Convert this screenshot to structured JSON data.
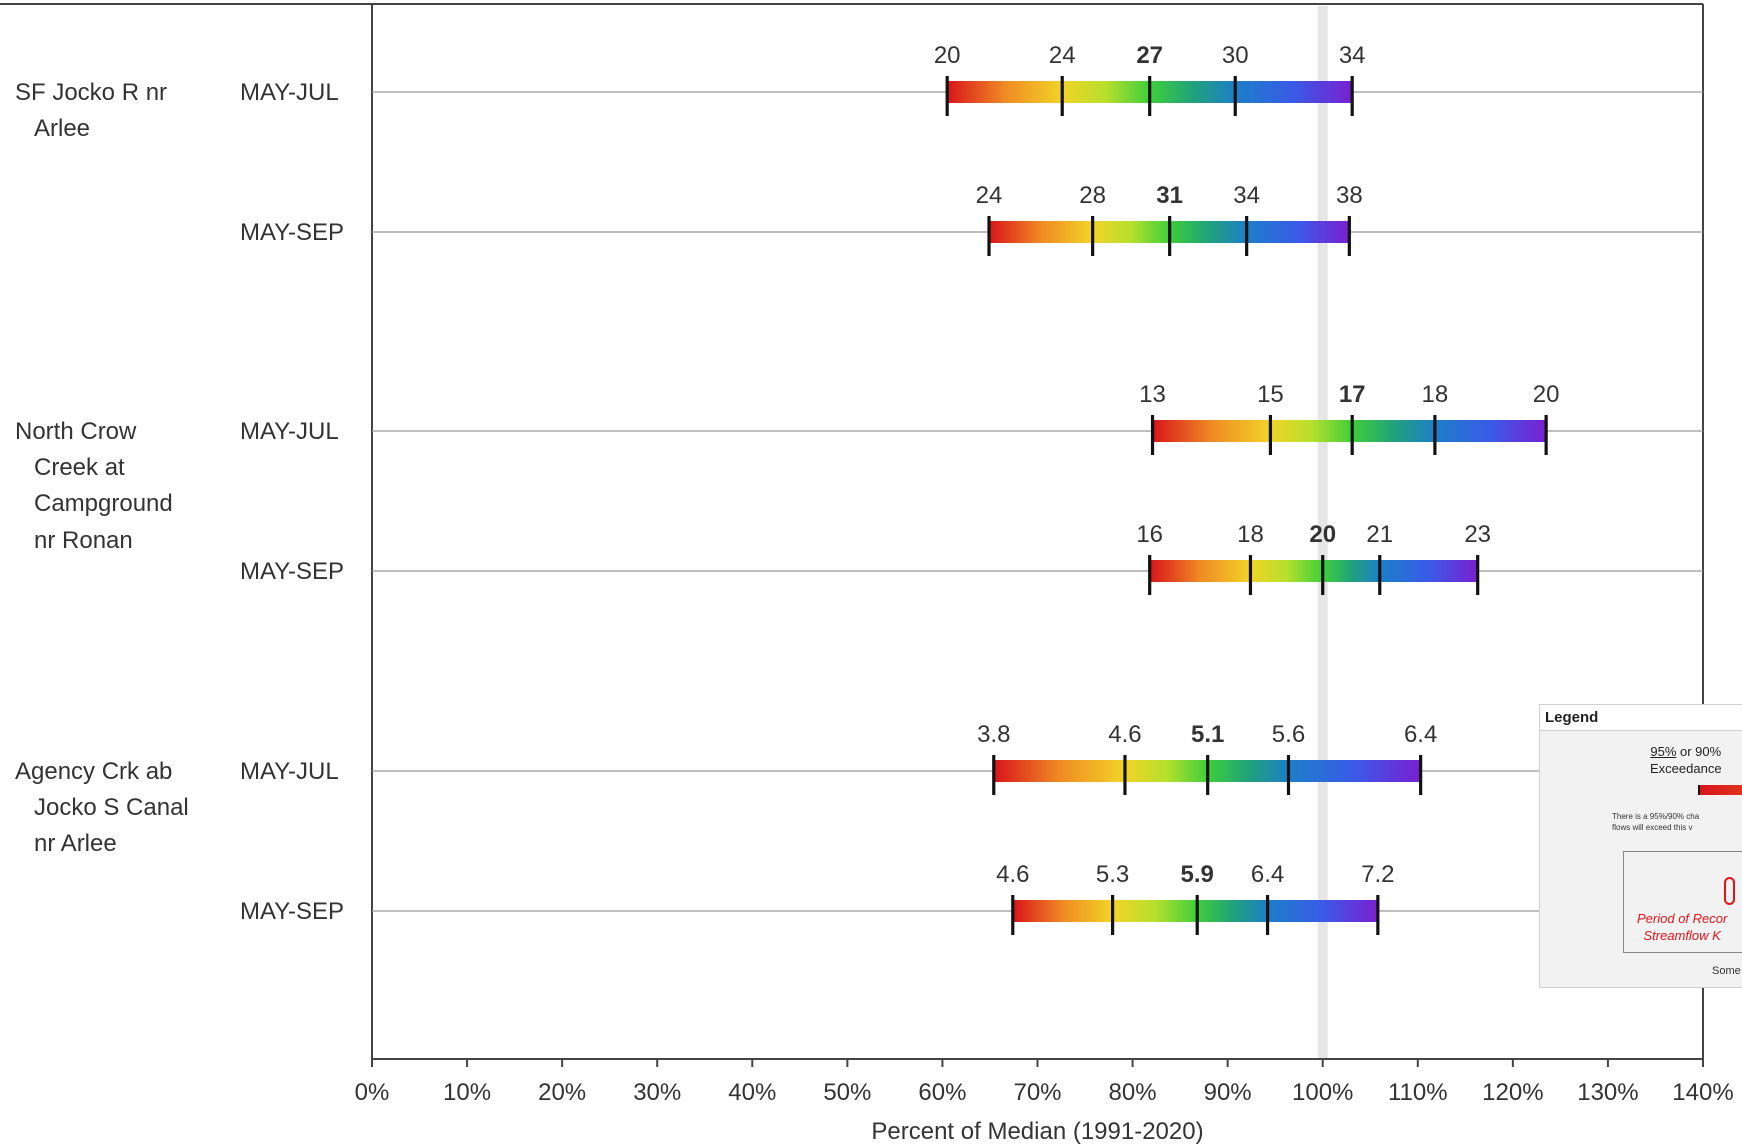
{
  "chart_data": {
    "type": "forecast-range",
    "xlabel": "Percent of Median (1991-2020)",
    "xlim": [
      0,
      140
    ],
    "xticks": [
      "0%",
      "10%",
      "20%",
      "30%",
      "40%",
      "50%",
      "60%",
      "70%",
      "80%",
      "90%",
      "100%",
      "110%",
      "120%",
      "130%",
      "140%"
    ],
    "median_reference_pct": 100,
    "stations": [
      {
        "name_lines": [
          "SF Jocko R nr",
          "Arlee"
        ],
        "forecasts": [
          {
            "period": "MAY-JUL",
            "pct": [
              60.5,
              72.6,
              81.8,
              90.8,
              103.1
            ],
            "values": [
              "20",
              "24",
              "27",
              "30",
              "34"
            ]
          },
          {
            "period": "MAY-SEP",
            "pct": [
              64.9,
              75.8,
              83.9,
              92.0,
              102.8
            ],
            "values": [
              "24",
              "28",
              "31",
              "34",
              "38"
            ]
          }
        ]
      },
      {
        "name_lines": [
          "North Crow",
          "Creek at",
          "Campground",
          "nr Ronan"
        ],
        "forecasts": [
          {
            "period": "MAY-JUL",
            "pct": [
              82.1,
              94.5,
              103.1,
              111.8,
              123.5
            ],
            "values": [
              "13",
              "15",
              "17",
              "18",
              "20"
            ]
          },
          {
            "period": "MAY-SEP",
            "pct": [
              81.8,
              92.4,
              100.0,
              106.0,
              116.3
            ],
            "values": [
              "16",
              "18",
              "20",
              "21",
              "23"
            ]
          }
        ]
      },
      {
        "name_lines": [
          "Agency Crk ab",
          "Jocko S Canal",
          "nr Arlee"
        ],
        "forecasts": [
          {
            "period": "MAY-JUL",
            "pct": [
              65.4,
              79.2,
              87.9,
              96.4,
              110.3
            ],
            "values": [
              "3.8",
              "4.6",
              "5.1",
              "5.6",
              "6.4"
            ]
          },
          {
            "period": "MAY-SEP",
            "pct": [
              67.4,
              77.9,
              86.8,
              94.2,
              105.8
            ],
            "values": [
              "4.6",
              "5.3",
              "5.9",
              "6.4",
              "7.2"
            ]
          }
        ]
      }
    ],
    "segment_colors": [
      [
        "#d8141b",
        "#f08a24",
        "#f2d428"
      ],
      [
        "#f2d428",
        "#b6e02c",
        "#3fcf3a"
      ],
      [
        "#3fcf3a",
        "#21a27a",
        "#1c7fc8"
      ],
      [
        "#1c7fc8",
        "#3a5ae8",
        "#7a1fd0"
      ]
    ]
  },
  "legend": {
    "title": "Legend",
    "exceedance_pct": "95%",
    "exceedance_rest": " or 90%",
    "exceedance_line2": "Exceedance",
    "small_line1": "There is a 95%/90% cha",
    "small_line2": "flows will exceed this v",
    "red_line1": "Period of Recor",
    "red_line2": "Streamflow K",
    "bottom": "Some"
  }
}
